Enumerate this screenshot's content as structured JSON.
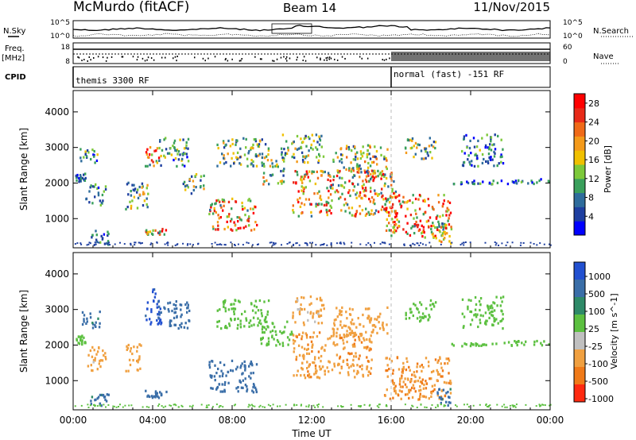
{
  "header": {
    "station": "McMurdo (fitACF)",
    "beam": "Beam 14",
    "date": "11/Nov/2015"
  },
  "chart_data": [
    {
      "type": "line",
      "name": "noise-panel",
      "left_label": "N.Sky",
      "right_label": "N.Search",
      "left_ticks": [
        "10^5",
        "10^0"
      ],
      "right_ticks": [
        "10^5",
        "10^0"
      ],
      "scale": "log"
    },
    {
      "type": "line",
      "name": "freq-nave-panel",
      "left_label_1": "Freq.",
      "left_label_2": "[MHz]",
      "left_ticks": [
        "18",
        "8"
      ],
      "right_label": "Nave",
      "right_ticks": [
        "60",
        "0"
      ]
    },
    {
      "type": "table",
      "name": "cpid-panel",
      "label": "CPID",
      "segments": [
        {
          "start": "00:00",
          "end": "16:00",
          "text": "themis 3300 RF"
        },
        {
          "start": "16:00",
          "end": "24:00",
          "text": "normal (fast) -151 RF"
        }
      ]
    },
    {
      "type": "heatmap",
      "name": "power",
      "ylabel": "Slant Range [km]",
      "ylim": [
        180,
        4600
      ],
      "yticks": [
        "1000",
        "2000",
        "3000",
        "4000"
      ],
      "colorbar_label": "Power [dB]",
      "colorbar_ticks": [
        "4",
        "8",
        "12",
        "16",
        "20",
        "24",
        "28"
      ],
      "colorbar_range": [
        0,
        30
      ],
      "colors": [
        "#0000ff",
        "#1e3fa0",
        "#2e6c9c",
        "#3aa05c",
        "#7dc93a",
        "#f0c000",
        "#f49a1a",
        "#f06a18",
        "#e82a18",
        "#ff0000"
      ],
      "echo_regions": [
        {
          "t": [
            0.1,
            0.6
          ],
          "r": [
            2050,
            2300
          ],
          "v": 6
        },
        {
          "t": [
            0.3,
            1.2
          ],
          "r": [
            2600,
            3000
          ],
          "v": 10
        },
        {
          "t": [
            0.6,
            1.6
          ],
          "r": [
            1400,
            2000
          ],
          "v": 8
        },
        {
          "t": [
            0.8,
            1.8
          ],
          "r": [
            300,
            700
          ],
          "v": 6
        },
        {
          "t": [
            2.6,
            3.8
          ],
          "r": [
            1300,
            2100
          ],
          "v": 12
        },
        {
          "t": [
            3.6,
            4.4
          ],
          "r": [
            2500,
            3100
          ],
          "v": 20
        },
        {
          "t": [
            3.6,
            4.7
          ],
          "r": [
            550,
            750
          ],
          "v": 18
        },
        {
          "t": [
            4.2,
            5.8
          ],
          "r": [
            2500,
            3300
          ],
          "v": 10
        },
        {
          "t": [
            5.5,
            6.6
          ],
          "r": [
            1700,
            2300
          ],
          "v": 12
        },
        {
          "t": [
            6.8,
            9.2
          ],
          "r": [
            700,
            1600
          ],
          "v": 20
        },
        {
          "t": [
            7.2,
            9.8
          ],
          "r": [
            2500,
            3300
          ],
          "v": 12
        },
        {
          "t": [
            9.4,
            10.6
          ],
          "r": [
            2000,
            2700
          ],
          "v": 14
        },
        {
          "t": [
            10.4,
            12.6
          ],
          "r": [
            2600,
            3400
          ],
          "v": 12
        },
        {
          "t": [
            11.0,
            16.2
          ],
          "r": [
            1100,
            2400
          ],
          "v": 18
        },
        {
          "t": [
            13.0,
            15.8
          ],
          "r": [
            2300,
            3100
          ],
          "v": 14
        },
        {
          "t": [
            15.6,
            19.0
          ],
          "r": [
            500,
            1700
          ],
          "v": 20
        },
        {
          "t": [
            16.6,
            18.2
          ],
          "r": [
            2700,
            3300
          ],
          "v": 12
        },
        {
          "t": [
            18.2,
            19.0
          ],
          "r": [
            300,
            900
          ],
          "v": 14
        },
        {
          "t": [
            19.0,
            21.5
          ],
          "r": [
            2000,
            2100
          ],
          "v": 6
        },
        {
          "t": [
            19.5,
            21.6
          ],
          "r": [
            2500,
            3400
          ],
          "v": 8
        },
        {
          "t": [
            21.5,
            24.0
          ],
          "r": [
            2000,
            2150
          ],
          "v": 6
        }
      ]
    },
    {
      "type": "heatmap",
      "name": "velocity",
      "ylabel": "Slant Range [km]",
      "ylim": [
        180,
        4600
      ],
      "yticks": [
        "1000",
        "2000",
        "3000",
        "4000"
      ],
      "colorbar_label": "Velocity [m s^-1]",
      "colorbar_ticks": [
        "1000",
        "500",
        "100",
        "25",
        "-25",
        "-100",
        "-500",
        "-1000"
      ],
      "colors": [
        "#2250d0",
        "#3a6ea8",
        "#2e8a68",
        "#5cc040",
        "#c0c0c0",
        "#f0a040",
        "#f07a18",
        "#ff2a10"
      ],
      "echo_regions": [
        {
          "t": [
            0.1,
            0.6
          ],
          "r": [
            2050,
            2300
          ],
          "v": 0
        },
        {
          "t": [
            0.4,
            1.4
          ],
          "r": [
            2500,
            3000
          ],
          "v": 150
        },
        {
          "t": [
            0.6,
            1.6
          ],
          "r": [
            1300,
            2000
          ],
          "v": -150
        },
        {
          "t": [
            0.8,
            1.8
          ],
          "r": [
            300,
            650
          ],
          "v": 150
        },
        {
          "t": [
            2.6,
            3.4
          ],
          "r": [
            1300,
            2100
          ],
          "v": -350
        },
        {
          "t": [
            3.6,
            4.4
          ],
          "r": [
            2600,
            3600
          ],
          "v": 700
        },
        {
          "t": [
            3.6,
            4.7
          ],
          "r": [
            550,
            750
          ],
          "v": 300
        },
        {
          "t": [
            4.2,
            5.8
          ],
          "r": [
            2500,
            3300
          ],
          "v": 200
        },
        {
          "t": [
            6.8,
            9.2
          ],
          "r": [
            700,
            1600
          ],
          "v": 300
        },
        {
          "t": [
            7.2,
            9.8
          ],
          "r": [
            2500,
            3300
          ],
          "v": 0
        },
        {
          "t": [
            9.4,
            11.0
          ],
          "r": [
            2000,
            2700
          ],
          "v": 0
        },
        {
          "t": [
            11.0,
            12.6
          ],
          "r": [
            2600,
            3400
          ],
          "v": -150
        },
        {
          "t": [
            11.0,
            15.0
          ],
          "r": [
            1100,
            2400
          ],
          "v": -400
        },
        {
          "t": [
            13.0,
            15.8
          ],
          "r": [
            2300,
            3100
          ],
          "v": -200
        },
        {
          "t": [
            15.6,
            19.0
          ],
          "r": [
            500,
            1700
          ],
          "v": -450
        },
        {
          "t": [
            16.6,
            18.2
          ],
          "r": [
            2700,
            3300
          ],
          "v": 0
        },
        {
          "t": [
            18.2,
            19.0
          ],
          "r": [
            300,
            900
          ],
          "v": 150
        },
        {
          "t": [
            19.0,
            21.5
          ],
          "r": [
            2000,
            2100
          ],
          "v": 0
        },
        {
          "t": [
            19.5,
            21.6
          ],
          "r": [
            2500,
            3400
          ],
          "v": 0
        },
        {
          "t": [
            21.5,
            24.0
          ],
          "r": [
            2000,
            2150
          ],
          "v": 0
        }
      ]
    }
  ],
  "xaxis": {
    "label": "Time UT",
    "ticks": [
      "00:00",
      "04:00",
      "08:00",
      "12:00",
      "16:00",
      "20:00",
      "00:00"
    ],
    "range_hours": [
      0,
      24
    ]
  }
}
